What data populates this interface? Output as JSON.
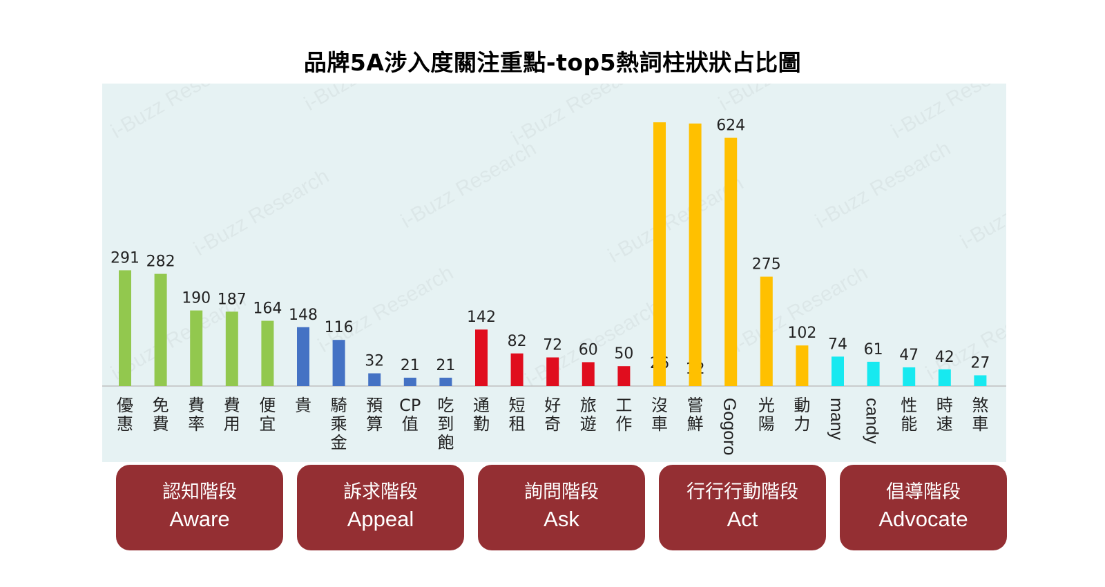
{
  "chart_data": {
    "type": "bar",
    "title": "品牌5A涉入度關注重點-top5熱詞柱狀狀占比圖",
    "xlabel": "",
    "ylabel": "",
    "categories": [
      "優惠",
      "免費",
      "費率",
      "費用",
      "便宜",
      "貴",
      "騎乘金",
      "預算",
      "CP值",
      "吃到飽",
      "通勤",
      "短租",
      "好奇",
      "旅遊",
      "工作",
      "沒車",
      "嘗鮮",
      "Gogoro",
      "光陽",
      "動力",
      "many",
      "candy",
      "性能",
      "時速",
      "煞車"
    ],
    "values": [
      291,
      282,
      190,
      187,
      164,
      148,
      116,
      32,
      21,
      21,
      142,
      82,
      72,
      60,
      50,
      26,
      12,
      624,
      275,
      102,
      74,
      61,
      47,
      42,
      27
    ],
    "value_labels": [
      "291",
      "282",
      "190",
      "187",
      "164",
      "148",
      "116",
      "32",
      "21",
      "21",
      "142",
      "82",
      "72",
      "60",
      "50",
      "26",
      "12",
      "624",
      "275",
      "102",
      "74",
      "61",
      "47",
      "42",
      "27"
    ],
    "ylim": [
      0,
      700
    ],
    "grid": false,
    "legend": "none",
    "stage_of_bar": [
      0,
      0,
      0,
      0,
      0,
      1,
      1,
      1,
      1,
      1,
      2,
      2,
      2,
      2,
      2,
      3,
      3,
      3,
      3,
      3,
      4,
      4,
      4,
      4,
      4
    ],
    "stage_colors": [
      "#92c84e",
      "#4472c4",
      "#e00d1e",
      "#ffc000",
      "#17e9f0"
    ],
    "overlay_bars": [
      {
        "category": "沒車",
        "value": 663,
        "color": "#ffc000"
      },
      {
        "category": "嘗鮮",
        "value": 660,
        "color": "#ffc000"
      }
    ]
  },
  "stages": [
    {
      "cn": "認知階段",
      "en": "Aware"
    },
    {
      "cn": "訴求階段",
      "en": "Appeal"
    },
    {
      "cn": "詢問階段",
      "en": "Ask"
    },
    {
      "cn": "行行行動階段",
      "en": "Act"
    },
    {
      "cn": "倡導階段",
      "en": "Advocate"
    }
  ],
  "watermark": "i-Buzz Research",
  "colors": {
    "plot_bg": "#e6f2f3",
    "stage_box": "#942f33",
    "axis": "#bfbfbf"
  }
}
